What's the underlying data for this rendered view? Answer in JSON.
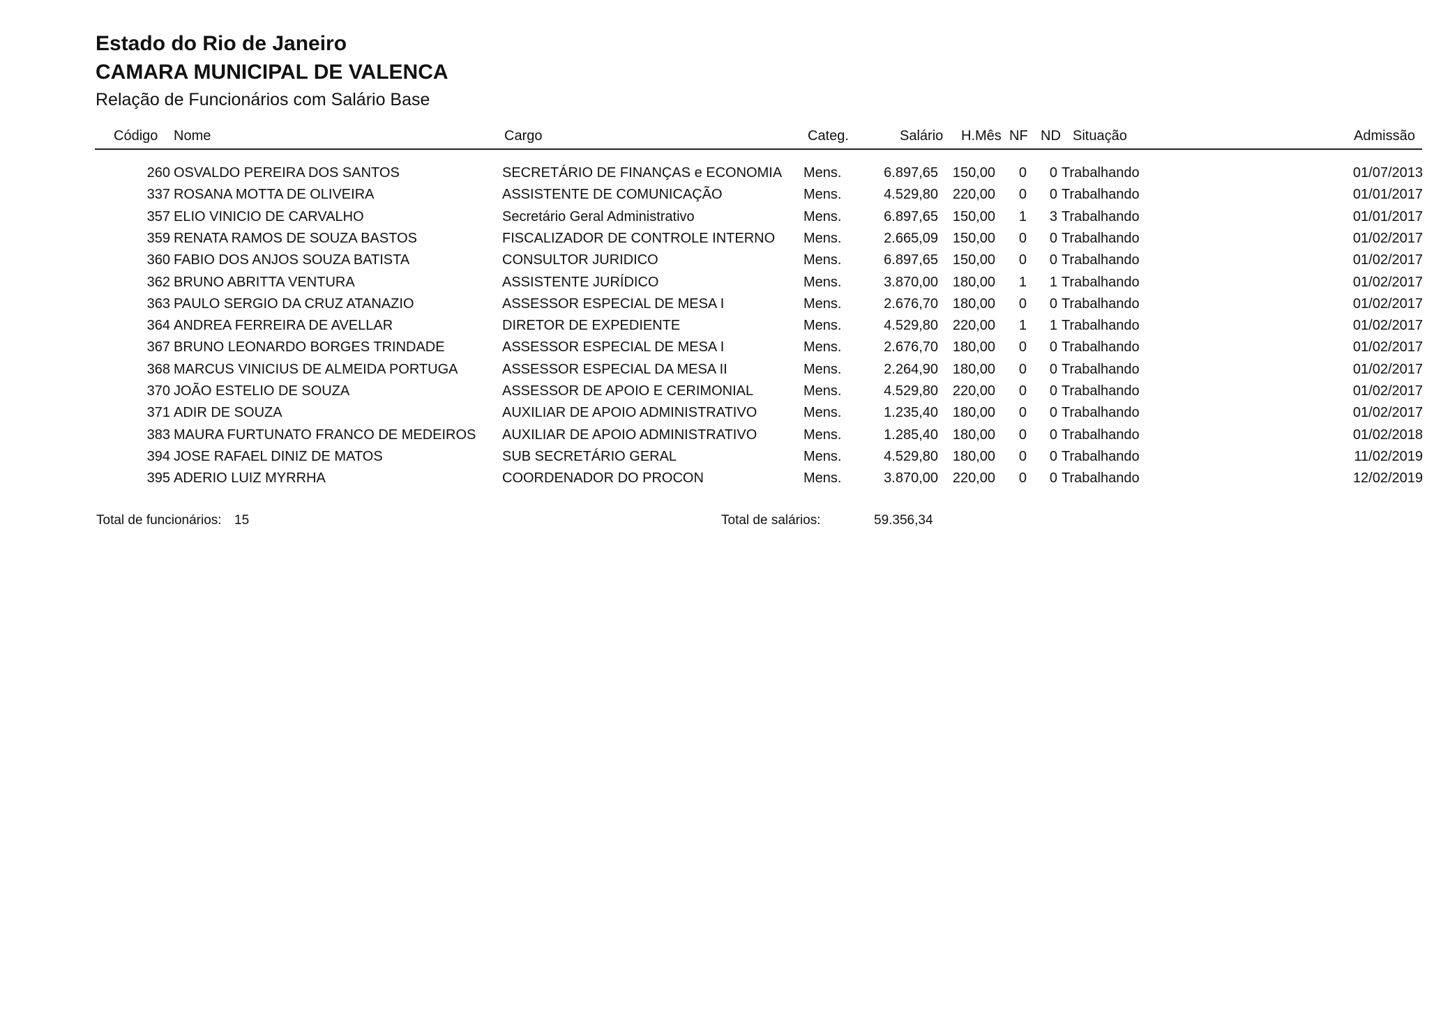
{
  "header": {
    "state": "Estado do Rio de Janeiro",
    "institution": "CAMARA MUNICIPAL DE VALENCA",
    "report_title": "Relação de Funcionários com Salário Base"
  },
  "columns": {
    "codigo": "Código",
    "nome": "Nome",
    "cargo": "Cargo",
    "categ": "Categ.",
    "salario": "Salário",
    "hmes": "H.Mês",
    "nf": "NF",
    "nd": "ND",
    "situacao": "Situação",
    "admissao": "Admissão"
  },
  "rows": [
    {
      "codigo": "260",
      "nome": "OSVALDO PEREIRA DOS SANTOS",
      "cargo": "SECRETÁRIO DE FINANÇAS e ECONOMIA",
      "categ": "Mens.",
      "salario": "6.897,65",
      "hmes": "150,00",
      "nf": "0",
      "nd": "0",
      "situacao": "Trabalhando",
      "admissao": "01/07/2013"
    },
    {
      "codigo": "337",
      "nome": "ROSANA MOTTA DE OLIVEIRA",
      "cargo": "ASSISTENTE DE COMUNICAÇÃO",
      "categ": "Mens.",
      "salario": "4.529,80",
      "hmes": "220,00",
      "nf": "0",
      "nd": "0",
      "situacao": "Trabalhando",
      "admissao": "01/01/2017"
    },
    {
      "codigo": "357",
      "nome": "ELIO VINICIO DE CARVALHO",
      "cargo": "Secretário Geral Administrativo",
      "categ": "Mens.",
      "salario": "6.897,65",
      "hmes": "150,00",
      "nf": "1",
      "nd": "3",
      "situacao": "Trabalhando",
      "admissao": "01/01/2017"
    },
    {
      "codigo": "359",
      "nome": "RENATA  RAMOS  DE SOUZA BASTOS",
      "cargo": "FISCALIZADOR DE CONTROLE INTERNO",
      "categ": "Mens.",
      "salario": "2.665,09",
      "hmes": "150,00",
      "nf": "0",
      "nd": "0",
      "situacao": "Trabalhando",
      "admissao": "01/02/2017"
    },
    {
      "codigo": "360",
      "nome": "FABIO DOS ANJOS SOUZA BATISTA",
      "cargo": "CONSULTOR JURIDICO",
      "categ": "Mens.",
      "salario": "6.897,65",
      "hmes": "150,00",
      "nf": "0",
      "nd": "0",
      "situacao": "Trabalhando",
      "admissao": "01/02/2017"
    },
    {
      "codigo": "362",
      "nome": "BRUNO ABRITTA VENTURA",
      "cargo": "ASSISTENTE JURÍDICO",
      "categ": "Mens.",
      "salario": "3.870,00",
      "hmes": "180,00",
      "nf": "1",
      "nd": "1",
      "situacao": "Trabalhando",
      "admissao": "01/02/2017"
    },
    {
      "codigo": "363",
      "nome": "PAULO SERGIO DA CRUZ  ATANAZIO",
      "cargo": "ASSESSOR ESPECIAL DE MESA I",
      "categ": "Mens.",
      "salario": "2.676,70",
      "hmes": "180,00",
      "nf": "0",
      "nd": "0",
      "situacao": "Trabalhando",
      "admissao": "01/02/2017"
    },
    {
      "codigo": "364",
      "nome": "ANDREA FERREIRA DE AVELLAR",
      "cargo": "DIRETOR DE EXPEDIENTE",
      "categ": "Mens.",
      "salario": "4.529,80",
      "hmes": "220,00",
      "nf": "1",
      "nd": "1",
      "situacao": "Trabalhando",
      "admissao": "01/02/2017"
    },
    {
      "codigo": "367",
      "nome": "BRUNO LEONARDO BORGES TRINDADE",
      "cargo": "ASSESSOR ESPECIAL DE MESA I",
      "categ": "Mens.",
      "salario": "2.676,70",
      "hmes": "180,00",
      "nf": "0",
      "nd": "0",
      "situacao": "Trabalhando",
      "admissao": "01/02/2017"
    },
    {
      "codigo": "368",
      "nome": "MARCUS VINICIUS DE ALMEIDA PORTUGA",
      "cargo": "ASSESSOR  ESPECIAL DA MESA II",
      "categ": "Mens.",
      "salario": "2.264,90",
      "hmes": "180,00",
      "nf": "0",
      "nd": "0",
      "situacao": "Trabalhando",
      "admissao": "01/02/2017"
    },
    {
      "codigo": "370",
      "nome": "JOÃO ESTELIO DE SOUZA",
      "cargo": "ASSESSOR DE APOIO E CERIMONIAL",
      "categ": "Mens.",
      "salario": "4.529,80",
      "hmes": "220,00",
      "nf": "0",
      "nd": "0",
      "situacao": "Trabalhando",
      "admissao": "01/02/2017"
    },
    {
      "codigo": "371",
      "nome": "ADIR DE SOUZA",
      "cargo": "AUXILIAR DE APOIO ADMINISTRATIVO",
      "categ": "Mens.",
      "salario": "1.235,40",
      "hmes": "180,00",
      "nf": "0",
      "nd": "0",
      "situacao": "Trabalhando",
      "admissao": "01/02/2017"
    },
    {
      "codigo": "383",
      "nome": "MAURA FURTUNATO FRANCO DE MEDEIROS",
      "cargo": "AUXILIAR DE APOIO ADMINISTRATIVO",
      "categ": "Mens.",
      "salario": "1.285,40",
      "hmes": "180,00",
      "nf": "0",
      "nd": "0",
      "situacao": "Trabalhando",
      "admissao": "01/02/2018"
    },
    {
      "codigo": "394",
      "nome": "JOSE RAFAEL DINIZ DE MATOS",
      "cargo": "SUB SECRETÁRIO GERAL",
      "categ": "Mens.",
      "salario": "4.529,80",
      "hmes": "180,00",
      "nf": "0",
      "nd": "0",
      "situacao": "Trabalhando",
      "admissao": "11/02/2019"
    },
    {
      "codigo": "395",
      "nome": "ADERIO LUIZ MYRRHA",
      "cargo": "COORDENADOR DO PROCON",
      "categ": "Mens.",
      "salario": "3.870,00",
      "hmes": "220,00",
      "nf": "0",
      "nd": "0",
      "situacao": "Trabalhando",
      "admissao": "12/02/2019"
    }
  ],
  "footer": {
    "total_funcionarios_label": "Total de funcionários:",
    "total_funcionarios": "15",
    "total_salarios_label": "Total de salários:",
    "total_salarios": "59.356,34"
  }
}
